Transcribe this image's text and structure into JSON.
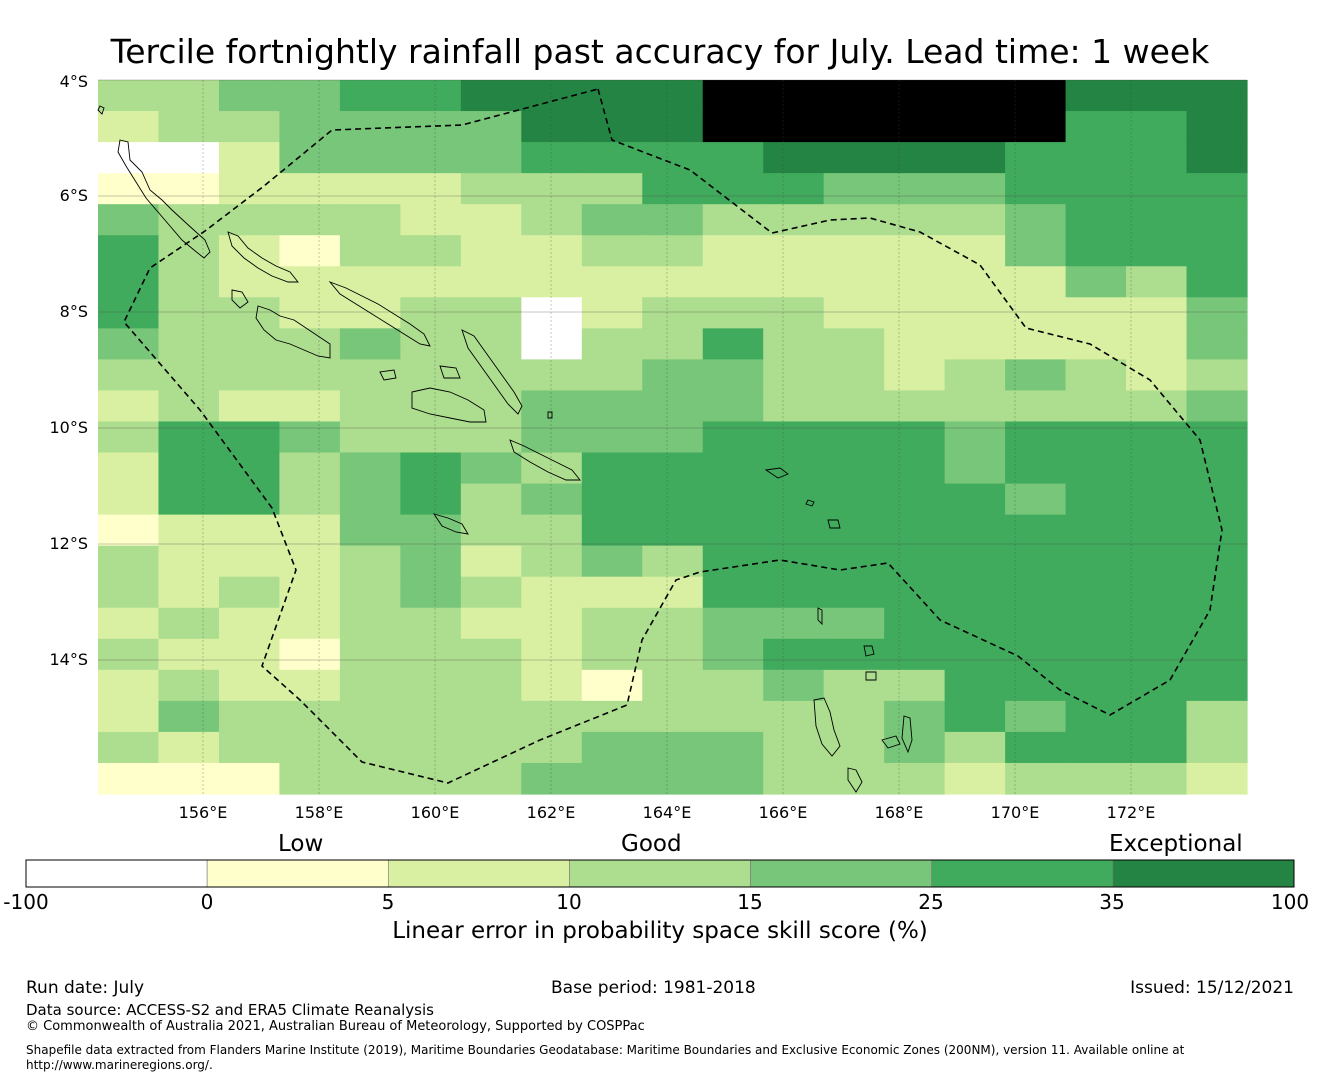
{
  "title": "Tercile fortnightly rainfall past accuracy for July. Lead time: 1 week",
  "map": {
    "lat_labels": [
      "4°S",
      "6°S",
      "8°S",
      "10°S",
      "12°S",
      "14°S"
    ],
    "lon_labels": [
      "156°E",
      "158°E",
      "160°E",
      "162°E",
      "164°E",
      "166°E",
      "168°E",
      "170°E",
      "172°E"
    ],
    "grid": [
      "3344556666777777666",
      "2334444666777777556",
      "0024444555566665556",
      "1122223335554445555",
      "4333322344333334555",
      "5321332233222224555",
      "5322222222222222435",
      "5332233023332222224",
      "4333433033533222224",
      "3333333334433234323",
      "2322333444433333334",
      "3554333444555545555",
      "2553454355555545555",
      "2553453455555554555",
      "1222443355555555555",
      "3222342343555555555",
      "3232343222555555555",
      "2322332233444555555",
      "3221333233455555555",
      "2322333213343355555",
      "2433333333333454553",
      "3233333344433435553",
      "1113333444433323332"
    ]
  },
  "legend": {
    "categories": [
      "Low",
      "Good",
      "Exceptional"
    ],
    "ticks": [
      "-100",
      "0",
      "5",
      "10",
      "15",
      "25",
      "35",
      "100"
    ],
    "colors": [
      "#ffffff",
      "#ffffcc",
      "#d9f0a3",
      "#addd8e",
      "#78c679",
      "#41ab5d",
      "#238443"
    ],
    "title": "Linear error in probability space skill score (%)"
  },
  "footer": {
    "run_date": "Run date: July",
    "base_period": "Base period: 1981-2018",
    "issued": "Issued: 15/12/2021",
    "data_source": "Data source: ACCESS-S2 and ERA5 Climate Reanalysis",
    "copyright": "© Commonwealth of Australia 2021, Australian Bureau of Meteorology, Supported by COSPPac",
    "shapefile_line1": "Shapefile data extracted from Flanders Marine Institute (2019), Maritime Boundaries Geodatabase: Maritime Boundaries and Exclusive Economic Zones (200NM), version 11. Available online at",
    "shapefile_line2": "http://www.marineregions.org/."
  }
}
